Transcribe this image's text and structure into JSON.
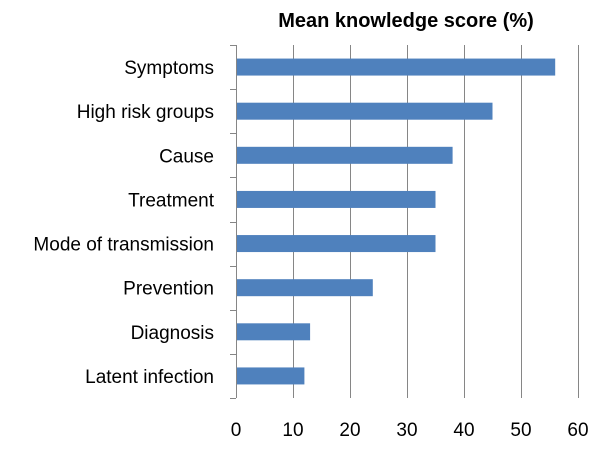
{
  "chart_data": {
    "type": "bar",
    "orientation": "horizontal",
    "title": "Mean knowledge score (%)",
    "xlabel": "",
    "ylabel": "",
    "categories": [
      "Symptoms",
      "High risk groups",
      "Cause",
      "Treatment",
      "Mode of transmission",
      "Prevention",
      "Diagnosis",
      "Latent infection"
    ],
    "values": [
      56,
      45,
      38,
      35,
      35,
      24,
      13,
      12
    ],
    "xlim": [
      0,
      60
    ],
    "xticks": [
      0,
      10,
      20,
      30,
      40,
      50,
      60
    ],
    "grid": "vertical",
    "legend": "none",
    "colors": {
      "bar": "#4F81BD",
      "grid": "#868686",
      "axis": "#868686"
    }
  }
}
